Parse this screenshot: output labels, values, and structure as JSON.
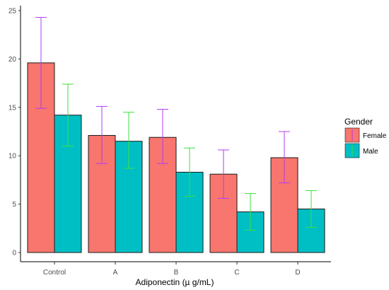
{
  "chart_data": {
    "type": "bar",
    "xlabel": "Adiponectin (µ g/mL)",
    "ylabel": "",
    "ylim": [
      0,
      25
    ],
    "yticks": [
      0,
      5,
      10,
      15,
      20,
      25
    ],
    "grid": false,
    "legend_position": "right",
    "legend_title": "Gender",
    "categories": [
      "Control",
      "A",
      "B",
      "C",
      "D"
    ],
    "series": [
      {
        "name": "Female",
        "color": "#F8766D",
        "values": [
          19.6,
          12.1,
          11.9,
          8.1,
          9.8
        ],
        "error_low": [
          14.9,
          9.2,
          9.2,
          5.6,
          7.2
        ],
        "error_high": [
          24.3,
          15.1,
          14.8,
          10.6,
          12.5
        ],
        "error_color": "#b23bf5"
      },
      {
        "name": "Male",
        "color": "#00BFC4",
        "values": [
          14.2,
          11.5,
          8.3,
          4.2,
          4.5
        ],
        "error_low": [
          11.0,
          8.7,
          5.8,
          2.3,
          2.6
        ],
        "error_high": [
          17.4,
          14.5,
          10.8,
          6.1,
          6.4
        ],
        "error_color": "#3ce13c"
      }
    ]
  }
}
